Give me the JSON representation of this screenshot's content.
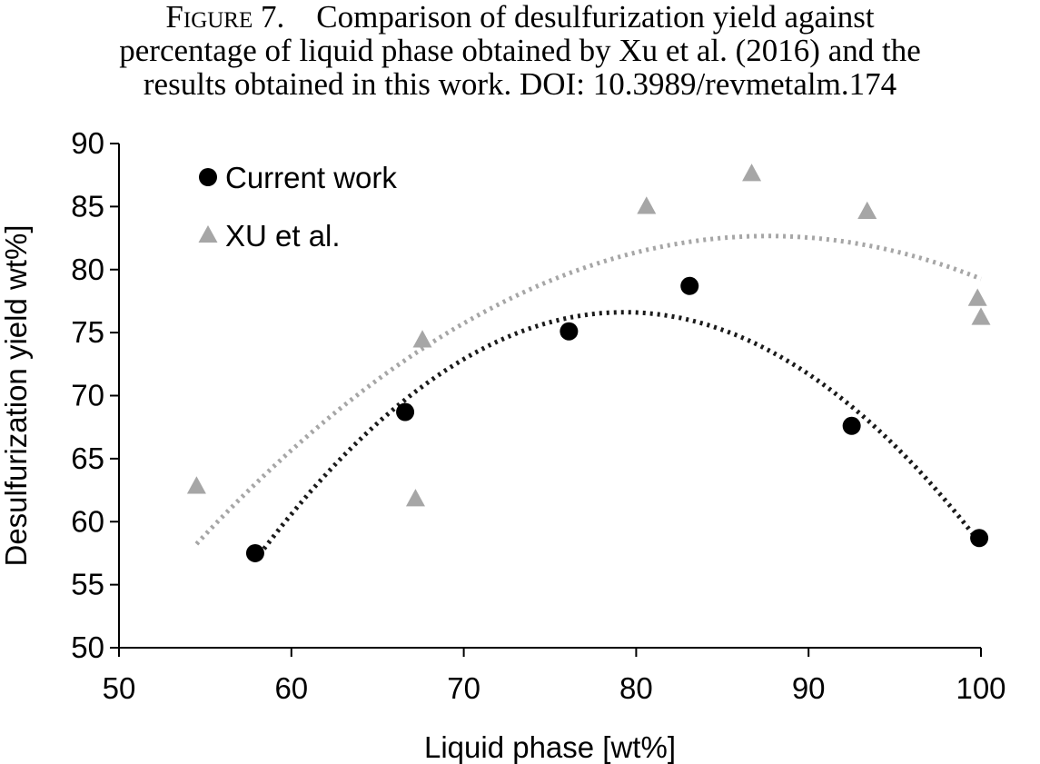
{
  "caption": {
    "figure_label": "Figure 7.",
    "line1": "Comparison of desulfurization yield against",
    "line2": "percentage of liquid phase obtained by Xu et al. (2016) and the",
    "line3": "results obtained in this work. DOI: 10.3989/revmetalm.174"
  },
  "chart_data": {
    "type": "scatter",
    "xlabel": "Liquid phase [wt%]",
    "ylabel": "Desulfurization yield wt%]",
    "xlim": [
      50,
      100
    ],
    "ylim": [
      50,
      90
    ],
    "xticks": [
      50,
      60,
      70,
      80,
      90,
      100
    ],
    "yticks": [
      50,
      55,
      60,
      65,
      70,
      75,
      80,
      85,
      90
    ],
    "grid": false,
    "legend_position": "top-left",
    "series": [
      {
        "name": "Current work",
        "marker": "circle",
        "color": "#000000",
        "x": [
          57.9,
          66.6,
          76.1,
          83.1,
          92.5,
          99.9
        ],
        "y": [
          57.5,
          68.7,
          75.1,
          78.7,
          67.6,
          58.7
        ],
        "trendline": {
          "type": "quadratic",
          "color": "#1a1a1a",
          "style": "dotted",
          "x_range": [
            57.9,
            99.9
          ]
        }
      },
      {
        "name": "XU et al.",
        "marker": "triangle",
        "color": "#a6a6a6",
        "x": [
          54.5,
          67.2,
          67.6,
          80.6,
          86.7,
          93.4,
          99.8,
          100.0
        ],
        "y": [
          62.8,
          61.8,
          74.4,
          85.0,
          87.6,
          84.6,
          77.7,
          76.2
        ],
        "trendline": {
          "type": "quadratic",
          "color": "#a6a6a6",
          "style": "dotted",
          "x_range": [
            54.5,
            100.0
          ]
        }
      }
    ]
  }
}
